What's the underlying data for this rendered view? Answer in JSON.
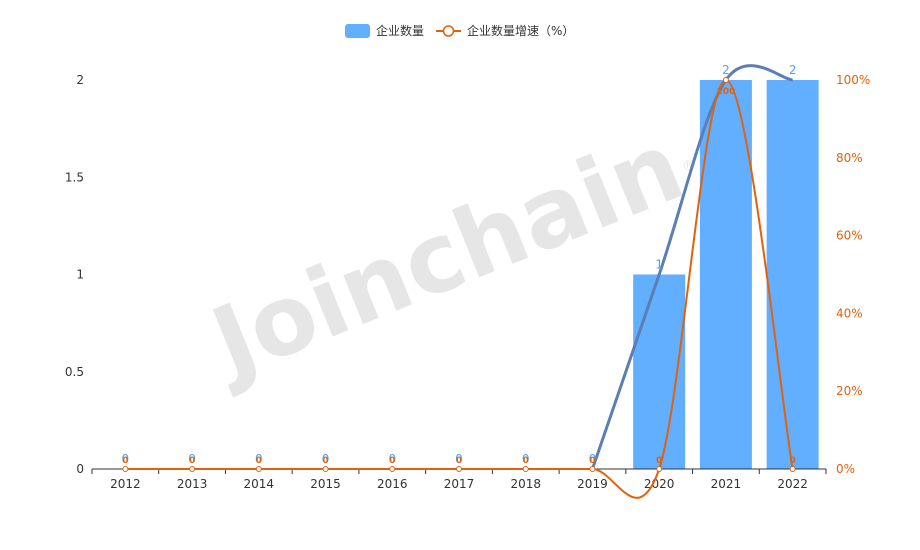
{
  "watermark": "Joinchain",
  "chart_data": {
    "type": "bar",
    "categories": [
      "2012",
      "2013",
      "2014",
      "2015",
      "2016",
      "2017",
      "2018",
      "2019",
      "2020",
      "2021",
      "2022"
    ],
    "series": [
      {
        "name": "企业数量",
        "type": "bar",
        "axis": "left",
        "values": [
          0,
          0,
          0,
          0,
          0,
          0,
          0,
          0,
          1,
          2,
          2
        ],
        "color": "#62aeff"
      },
      {
        "name": "企业数量增速（%）",
        "type": "line",
        "axis": "right",
        "values": [
          0,
          0,
          0,
          0,
          0,
          0,
          0,
          0,
          0,
          100,
          0
        ],
        "color": "#e0620d"
      }
    ],
    "y_left": {
      "ticks": [
        "0",
        "0.5",
        "1",
        "1.5",
        "2"
      ],
      "range": [
        0,
        2
      ]
    },
    "y_right": {
      "ticks": [
        "0%",
        "20%",
        "40%",
        "60%",
        "80%",
        "100%"
      ],
      "range": [
        0,
        100
      ]
    },
    "legend_position": "top-center",
    "grid": false
  }
}
